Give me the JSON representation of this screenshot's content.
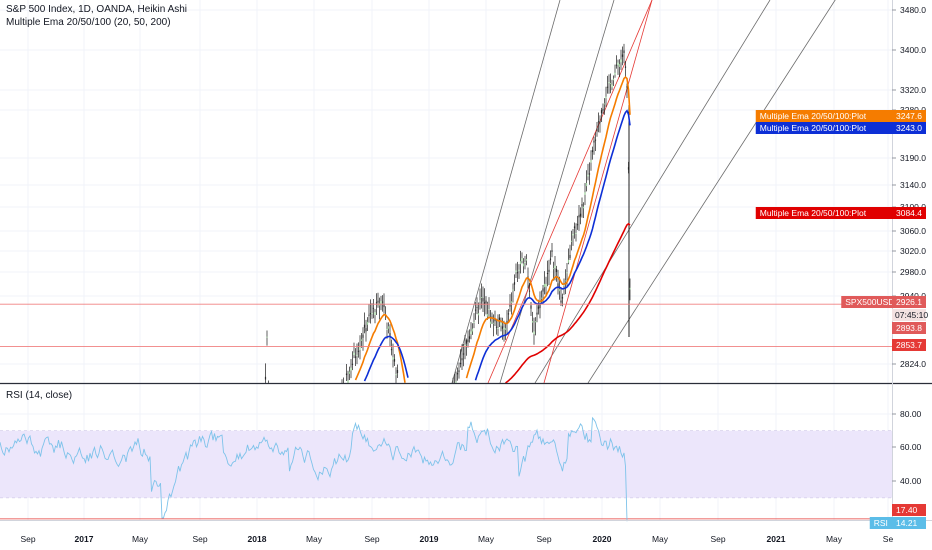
{
  "header": {
    "title": "S&P 500 Index, 1D, OANDA, Heikin Ashi",
    "indicator": "Multiple Ema 20/50/100 (20, 50, 200)"
  },
  "rsi_panel": {
    "title": "RSI (14, close)"
  },
  "colors": {
    "ema20": "#f57c00",
    "ema50": "#0d2fd6",
    "ema200": "#e00000",
    "rsi_line": "#7ec3ea",
    "rsi_band": "#ece6fb",
    "trendline_red": "#e53935",
    "trendline_gray": "#6b6b6b",
    "candle": "#1c1c1c",
    "grid": "#f0f3fa"
  },
  "chart_data": [
    {
      "type": "line",
      "title": "S&P 500 Index, 1D, OANDA, Heikin Ashi",
      "x_axis_labels": [
        "Sep",
        "2017",
        "May",
        "Sep",
        "2018",
        "May",
        "Sep",
        "2019",
        "May",
        "Sep",
        "2020",
        "May",
        "Sep",
        "2021",
        "May",
        "Se"
      ],
      "y_tick_labels": [
        "3480.0",
        "3400.0",
        "3320.0",
        "3280.0",
        "3190.0",
        "3140.0",
        "3100.0",
        "3060.0",
        "3020.0",
        "2980.0",
        "2940.0",
        "2824.0"
      ],
      "ylim": [
        2800,
        3500
      ],
      "series": [
        {
          "name": "Multiple Ema 20/50/100:Plot",
          "last_value": "3247.6"
        },
        {
          "name": "Multiple Ema 20/50/100:Plot",
          "last_value": "3243.0"
        },
        {
          "name": "Multiple Ema 20/50/100:Plot",
          "last_value": "3084.4"
        },
        {
          "name": "SPX500USD",
          "last_value": "2926.1",
          "countdown": "07:45:10"
        }
      ],
      "price_labels": [
        "2893.8",
        "2853.7"
      ],
      "horizontal_levels": [
        2926.1,
        2853.7
      ]
    },
    {
      "type": "line",
      "title": "RSI (14, close)",
      "y_tick_labels": [
        "80.00",
        "60.00",
        "40.00"
      ],
      "ylim": [
        15,
        95
      ],
      "band": [
        30,
        70
      ],
      "oversold_level": "17.40",
      "series": [
        {
          "name": "RSI",
          "last_value": "14.21"
        }
      ]
    }
  ]
}
